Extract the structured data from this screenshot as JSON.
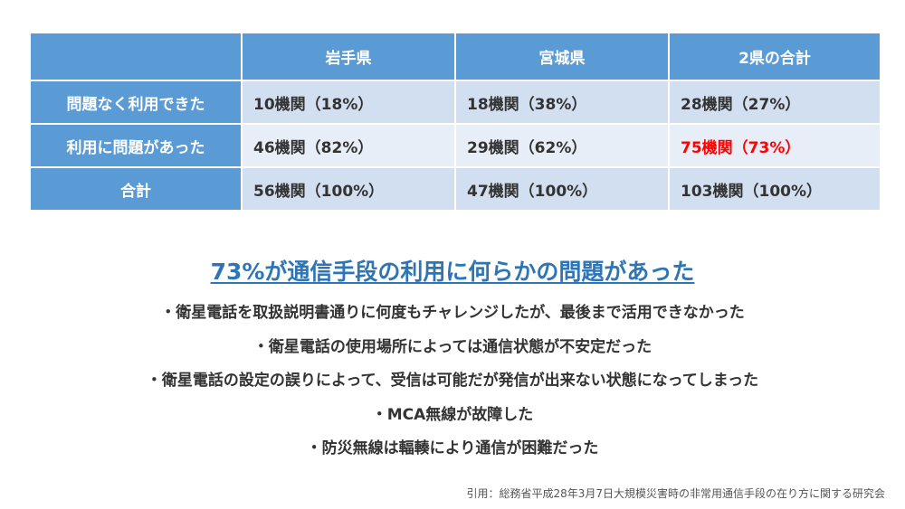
{
  "table": {
    "headers": [
      "",
      "岩手県",
      "宮城県",
      "2県の合計"
    ],
    "rows": [
      {
        "label": "問題なく利用できた",
        "cells": [
          "10機関（18%）",
          "18機関（38%）",
          "28機関（27%）"
        ]
      },
      {
        "label": "利用に問題があった",
        "cells": [
          "46機関（82%）",
          "29機関（62%）",
          "75機関（73%）"
        ]
      },
      {
        "label": "合計",
        "cells": [
          "56機関（100%）",
          "47機関（100%）",
          "103機関（100%）"
        ]
      }
    ]
  },
  "headline": "73%が通信手段の利用に何らかの問題があった",
  "points": [
    "・衛星電話を取扱説明書通りに何度もチャレンジしたが、最後まで活用できなかった",
    "・衛星電話の使用場所によっては通信状態が不安定だった",
    "・衛星電話の設定の誤りによって、受信は可能だが発信が出来ない状態になってしまった",
    "・MCA無線が故障した",
    "・防災無線は輻輳により通信が困難だった"
  ],
  "citation": "引用：総務省平成28年3月7日大規模災害時の非常用通信手段の在り方に関する研究会",
  "colors": {
    "header_bg": "#5b9bd5",
    "row_bg_odd": "#d2dff0",
    "row_bg_even": "#e8eef7",
    "highlight": "#ff0000",
    "headline": "#2e75b6"
  }
}
